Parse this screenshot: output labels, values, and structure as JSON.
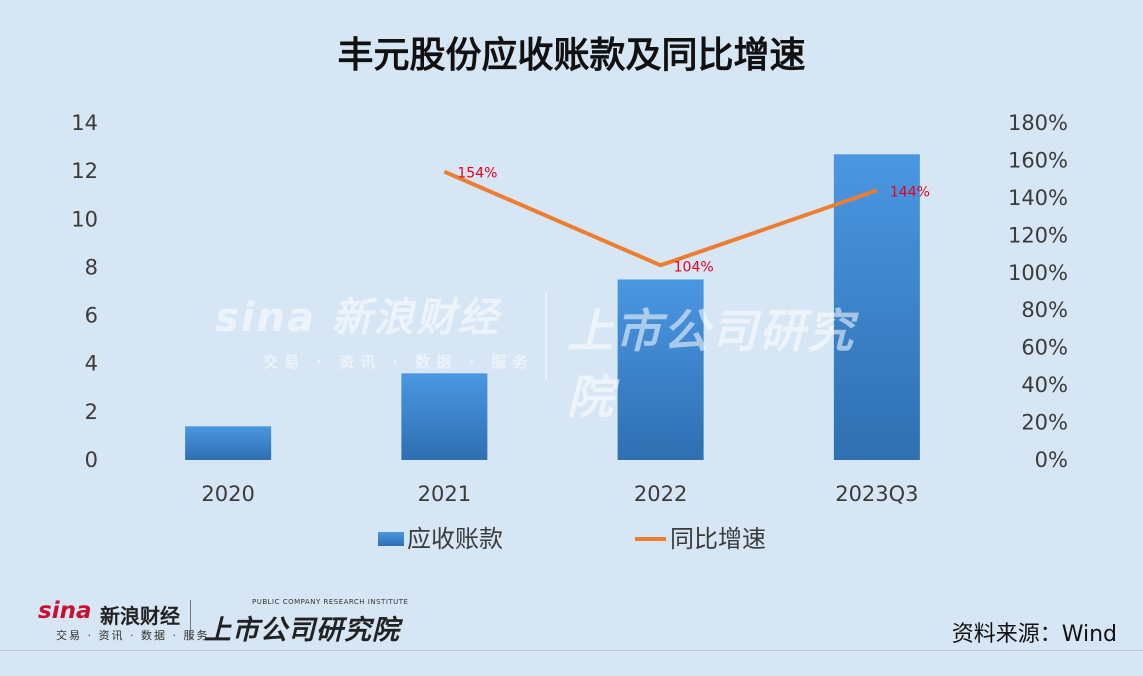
{
  "title": "丰元股份应收账款及同比增速",
  "source": "资料来源：Wind",
  "watermark": {
    "brand": "sina 新浪财经",
    "sub": "交易 · 资讯 · 数据 · 服务",
    "institute": "上市公司研究院"
  },
  "footer_logo": {
    "sina": "sina",
    "cn": "新浪财经",
    "sub": "交易 · 资讯 · 数据 · 服务",
    "en": "PUBLIC COMPANY RESEARCH INSTITUTE",
    "institute": "上市公司研究院"
  },
  "chart_data": {
    "type": "bar",
    "title": "丰元股份应收账款及同比增速",
    "categories": [
      "2020",
      "2021",
      "2022",
      "2023Q3"
    ],
    "series": [
      {
        "name": "应收账款",
        "type": "bar",
        "axis": "left",
        "values": [
          1.4,
          3.6,
          7.5,
          12.7
        ],
        "color": "#3f86cf"
      },
      {
        "name": "同比增速",
        "type": "line",
        "axis": "right",
        "values": [
          null,
          1.54,
          1.04,
          1.44
        ],
        "labels": [
          "",
          "154%",
          "104%",
          "144%"
        ],
        "color": "#ed7d31"
      }
    ],
    "y_left": {
      "min": 0,
      "max": 14,
      "ticks": [
        "0",
        "2",
        "4",
        "6",
        "8",
        "10",
        "12",
        "14"
      ]
    },
    "y_right": {
      "min": 0,
      "max": 1.8,
      "ticks": [
        "0%",
        "20%",
        "40%",
        "60%",
        "80%",
        "100%",
        "120%",
        "140%",
        "160%",
        "180%"
      ]
    },
    "legend_position": "bottom",
    "grid": false
  }
}
